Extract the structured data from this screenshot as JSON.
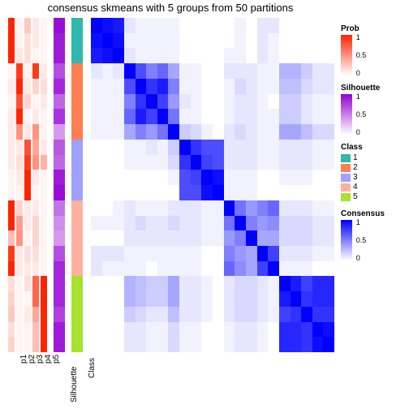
{
  "title": "consensus skmeans with 5 groups from 50 partitions",
  "n_rows": 22,
  "annotation_columns": [
    {
      "name": "p1",
      "type": "prob",
      "width": "narrow"
    },
    {
      "name": "p2",
      "type": "prob",
      "width": "narrow"
    },
    {
      "name": "p3",
      "type": "prob",
      "width": "narrow"
    },
    {
      "name": "p4",
      "type": "prob",
      "width": "narrow"
    },
    {
      "name": "p5",
      "type": "prob",
      "width": "narrow"
    },
    {
      "name": "Silhouette",
      "type": "silhouette",
      "width": "wide"
    },
    {
      "name": "Class",
      "type": "class",
      "width": "wide"
    }
  ],
  "prob_values": {
    "p1": [
      1.0,
      1.0,
      1.0,
      0.05,
      0.1,
      0.05,
      0.1,
      0.1,
      0.1,
      0.1,
      0.05,
      0.05,
      1.0,
      1.0,
      0.3,
      0.9,
      1.0,
      0.15,
      0.2,
      0.25,
      0.15,
      0.2
    ],
    "p2": [
      0.05,
      0.05,
      0.1,
      0.9,
      1.0,
      0.8,
      1.0,
      0.5,
      0.1,
      0.15,
      0.1,
      0.05,
      0.2,
      0.45,
      0.5,
      0.1,
      0.1,
      0.05,
      0.05,
      0.05,
      0.05,
      0.05
    ],
    "p3": [
      0.25,
      0.15,
      0.15,
      0.05,
      0.1,
      0.2,
      0.05,
      0.1,
      0.8,
      0.9,
      1.0,
      1.0,
      0.1,
      0.1,
      0.05,
      0.15,
      0.1,
      0.15,
      0.05,
      0.1,
      0.05,
      0.05
    ],
    "p4": [
      0.1,
      0.1,
      0.05,
      0.9,
      0.2,
      0.05,
      0.1,
      0.5,
      0.4,
      0.5,
      0.1,
      0.05,
      0.1,
      0.2,
      0.2,
      0.15,
      0.1,
      0.7,
      0.7,
      0.4,
      0.3,
      0.3
    ],
    "p5": [
      0.05,
      0.05,
      0.05,
      0.1,
      0.15,
      0.1,
      0.05,
      0.05,
      0.1,
      0.35,
      0.05,
      0.05,
      0.05,
      0.05,
      0.05,
      0.05,
      0.05,
      1.0,
      1.0,
      1.0,
      1.0,
      1.0
    ]
  },
  "silhouette": [
    0.95,
    0.9,
    0.9,
    0.7,
    0.85,
    0.6,
    0.8,
    0.4,
    0.65,
    0.6,
    0.9,
    0.95,
    0.55,
    0.45,
    0.4,
    0.7,
    0.85,
    0.85,
    0.85,
    0.75,
    0.9,
    0.9
  ],
  "class_assign": [
    1,
    1,
    1,
    2,
    2,
    2,
    2,
    2,
    3,
    3,
    3,
    3,
    4,
    4,
    4,
    4,
    4,
    5,
    5,
    5,
    5,
    5
  ],
  "class_colors": {
    "1": "#2fb8ac",
    "2": "#ff7f50",
    "3": "#a0a0ff",
    "4": "#ffb0a0",
    "5": "#a6e22e"
  },
  "prob_color_low": "#ffffff",
  "prob_color_high": "#ff2400",
  "silhouette_color_low": "#ffffff",
  "silhouette_color_high": "#9400d3",
  "consensus_color_low": "#ffffff",
  "consensus_color_high": "#0000ff",
  "consensus_matrix": [
    [
      1.0,
      0.95,
      0.9,
      0.1,
      0.05,
      0.05,
      0.05,
      0.05,
      0.0,
      0.0,
      0.0,
      0.0,
      0.0,
      0.05,
      0.0,
      0.1,
      0.1,
      0.0,
      0.0,
      0.0,
      0.0,
      0.0
    ],
    [
      0.95,
      1.0,
      0.95,
      0.05,
      0.05,
      0.05,
      0.05,
      0.05,
      0.0,
      0.0,
      0.0,
      0.0,
      0.0,
      0.05,
      0.0,
      0.1,
      0.05,
      0.0,
      0.0,
      0.0,
      0.0,
      0.0
    ],
    [
      0.9,
      0.95,
      1.0,
      0.1,
      0.05,
      0.05,
      0.05,
      0.05,
      0.0,
      0.0,
      0.0,
      0.0,
      0.05,
      0.05,
      0.0,
      0.1,
      0.05,
      0.0,
      0.0,
      0.0,
      0.0,
      0.0
    ],
    [
      0.1,
      0.05,
      0.1,
      1.0,
      0.7,
      0.5,
      0.6,
      0.35,
      0.05,
      0.05,
      0.0,
      0.0,
      0.1,
      0.1,
      0.1,
      0.05,
      0.05,
      0.3,
      0.3,
      0.2,
      0.1,
      0.1
    ],
    [
      0.05,
      0.05,
      0.05,
      0.7,
      1.0,
      0.8,
      0.9,
      0.5,
      0.05,
      0.05,
      0.0,
      0.0,
      0.05,
      0.15,
      0.1,
      0.05,
      0.05,
      0.25,
      0.25,
      0.15,
      0.1,
      0.1
    ],
    [
      0.05,
      0.05,
      0.05,
      0.5,
      0.8,
      1.0,
      0.75,
      0.4,
      0.1,
      0.05,
      0.0,
      0.0,
      0.05,
      0.1,
      0.1,
      0.05,
      0.0,
      0.2,
      0.2,
      0.1,
      0.05,
      0.05
    ],
    [
      0.05,
      0.05,
      0.05,
      0.6,
      0.9,
      0.75,
      1.0,
      0.55,
      0.05,
      0.05,
      0.0,
      0.0,
      0.05,
      0.1,
      0.1,
      0.05,
      0.05,
      0.2,
      0.2,
      0.1,
      0.05,
      0.05
    ],
    [
      0.05,
      0.05,
      0.05,
      0.35,
      0.5,
      0.4,
      0.55,
      1.0,
      0.2,
      0.15,
      0.05,
      0.0,
      0.1,
      0.15,
      0.1,
      0.05,
      0.05,
      0.35,
      0.35,
      0.25,
      0.15,
      0.15
    ],
    [
      0.0,
      0.0,
      0.0,
      0.05,
      0.05,
      0.1,
      0.05,
      0.2,
      1.0,
      0.8,
      0.7,
      0.7,
      0.1,
      0.1,
      0.1,
      0.05,
      0.05,
      0.1,
      0.1,
      0.1,
      0.05,
      0.05
    ],
    [
      0.0,
      0.0,
      0.0,
      0.05,
      0.05,
      0.05,
      0.05,
      0.15,
      0.8,
      1.0,
      0.75,
      0.7,
      0.1,
      0.1,
      0.1,
      0.05,
      0.05,
      0.1,
      0.1,
      0.1,
      0.05,
      0.05
    ],
    [
      0.0,
      0.0,
      0.0,
      0.0,
      0.0,
      0.0,
      0.0,
      0.05,
      0.7,
      0.75,
      1.0,
      0.95,
      0.05,
      0.05,
      0.05,
      0.0,
      0.0,
      0.05,
      0.05,
      0.05,
      0.0,
      0.0
    ],
    [
      0.0,
      0.0,
      0.0,
      0.0,
      0.0,
      0.0,
      0.0,
      0.0,
      0.7,
      0.7,
      0.95,
      1.0,
      0.05,
      0.05,
      0.05,
      0.0,
      0.0,
      0.0,
      0.0,
      0.0,
      0.0,
      0.0
    ],
    [
      0.0,
      0.0,
      0.05,
      0.1,
      0.05,
      0.05,
      0.05,
      0.1,
      0.1,
      0.1,
      0.05,
      0.05,
      1.0,
      0.55,
      0.4,
      0.5,
      0.6,
      0.1,
      0.1,
      0.1,
      0.05,
      0.05
    ],
    [
      0.05,
      0.05,
      0.05,
      0.1,
      0.15,
      0.1,
      0.1,
      0.15,
      0.1,
      0.1,
      0.05,
      0.05,
      0.55,
      1.0,
      0.5,
      0.4,
      0.45,
      0.15,
      0.15,
      0.15,
      0.1,
      0.1
    ],
    [
      0.0,
      0.0,
      0.0,
      0.1,
      0.1,
      0.1,
      0.1,
      0.1,
      0.1,
      0.1,
      0.05,
      0.05,
      0.4,
      0.5,
      1.0,
      0.35,
      0.35,
      0.15,
      0.15,
      0.15,
      0.1,
      0.1
    ],
    [
      0.1,
      0.1,
      0.1,
      0.05,
      0.05,
      0.05,
      0.05,
      0.05,
      0.05,
      0.05,
      0.0,
      0.0,
      0.5,
      0.4,
      0.35,
      1.0,
      0.75,
      0.1,
      0.1,
      0.1,
      0.05,
      0.05
    ],
    [
      0.1,
      0.05,
      0.05,
      0.05,
      0.05,
      0.0,
      0.05,
      0.05,
      0.05,
      0.05,
      0.0,
      0.0,
      0.6,
      0.45,
      0.35,
      0.75,
      1.0,
      0.05,
      0.05,
      0.05,
      0.0,
      0.0
    ],
    [
      0.0,
      0.0,
      0.0,
      0.3,
      0.25,
      0.2,
      0.2,
      0.35,
      0.1,
      0.1,
      0.05,
      0.0,
      0.1,
      0.15,
      0.15,
      0.1,
      0.05,
      1.0,
      0.9,
      0.75,
      0.85,
      0.85
    ],
    [
      0.0,
      0.0,
      0.0,
      0.3,
      0.25,
      0.2,
      0.2,
      0.35,
      0.1,
      0.1,
      0.05,
      0.0,
      0.1,
      0.15,
      0.15,
      0.1,
      0.05,
      0.9,
      1.0,
      0.8,
      0.85,
      0.85
    ],
    [
      0.0,
      0.0,
      0.0,
      0.2,
      0.15,
      0.1,
      0.1,
      0.25,
      0.1,
      0.1,
      0.05,
      0.0,
      0.1,
      0.15,
      0.15,
      0.1,
      0.05,
      0.75,
      0.8,
      1.0,
      0.8,
      0.8
    ],
    [
      0.0,
      0.0,
      0.0,
      0.1,
      0.1,
      0.05,
      0.05,
      0.15,
      0.05,
      0.05,
      0.0,
      0.0,
      0.05,
      0.1,
      0.1,
      0.05,
      0.0,
      0.85,
      0.85,
      0.8,
      1.0,
      0.95
    ],
    [
      0.0,
      0.0,
      0.0,
      0.1,
      0.1,
      0.05,
      0.05,
      0.15,
      0.05,
      0.05,
      0.0,
      0.0,
      0.05,
      0.1,
      0.1,
      0.05,
      0.0,
      0.85,
      0.85,
      0.8,
      0.95,
      1.0
    ]
  ],
  "legends": {
    "prob": {
      "title": "Prob",
      "ticks": [
        "1",
        "0.5",
        "0"
      ]
    },
    "silhouette": {
      "title": "Silhouette",
      "ticks": [
        "1",
        "0.5",
        "0"
      ]
    },
    "class": {
      "title": "Class",
      "items": [
        "1",
        "2",
        "3",
        "4",
        "5"
      ]
    },
    "consensus": {
      "title": "Consensus",
      "ticks": [
        "1",
        "0.5",
        "0"
      ]
    }
  }
}
